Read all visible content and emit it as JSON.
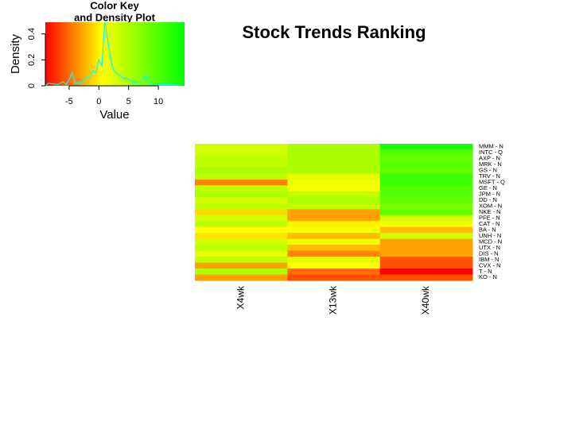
{
  "chart_data": [
    {
      "type": "heatmap",
      "title": "Stock Trends Ranking",
      "columns": [
        "X4wk",
        "X13wk",
        "X40wk"
      ],
      "rows": [
        "MMM - N",
        "INTC - Q",
        "AXP - N",
        "MRK - N",
        "GS - N",
        "TRV - N",
        "MSFT - Q",
        "GE - N",
        "JPM - N",
        "DD - N",
        "XOM - N",
        "NKE - N",
        "PFE - N",
        "CAT - N",
        "BA - N",
        "UNH - N",
        "MCD - N",
        "UTX - N",
        "DIS - N",
        "IBM - N",
        "CVX - N",
        "T - N",
        "KO - N"
      ],
      "values": [
        [
          3,
          5,
          13
        ],
        [
          3,
          5,
          10
        ],
        [
          4,
          5,
          9
        ],
        [
          4,
          5,
          10
        ],
        [
          5,
          5,
          9
        ],
        [
          4,
          2,
          11
        ],
        [
          -4,
          1,
          11
        ],
        [
          4,
          1,
          10
        ],
        [
          5,
          4,
          10
        ],
        [
          3,
          5,
          9
        ],
        [
          4,
          4,
          8
        ],
        [
          -1,
          -3,
          9
        ],
        [
          3,
          -3,
          3
        ],
        [
          4,
          0,
          1
        ],
        [
          0.5,
          1,
          -2
        ],
        [
          -0.5,
          -2,
          3
        ],
        [
          3,
          1.5,
          -3
        ],
        [
          4,
          -2,
          -3
        ],
        [
          2,
          -4,
          -3
        ],
        [
          4,
          2,
          -6
        ],
        [
          -3,
          0.5,
          -6
        ],
        [
          5,
          -5,
          -9
        ],
        [
          -3,
          -6,
          -6
        ]
      ],
      "colorscale": [
        {
          "value": -9,
          "color": "#ff0000"
        },
        {
          "value": 0.5,
          "color": "#ffff00"
        },
        {
          "value": 14.4,
          "color": "#00ff00"
        }
      ]
    },
    {
      "type": "density",
      "title": [
        "Color Key",
        "and Density Plot"
      ],
      "xlabel": "Value",
      "ylabel": "Density",
      "xlim": [
        -9,
        14.4
      ],
      "ylim": [
        0,
        0.49
      ],
      "xticks": [
        -5,
        0,
        5,
        10
      ],
      "yticks": [
        0,
        0.2,
        0.4
      ],
      "color": "#00ffff",
      "x": [
        -9,
        -8.5,
        -7,
        -6,
        -5.5,
        -5,
        -4.5,
        -4,
        -3,
        -2,
        -1.5,
        -1,
        -0.5,
        0,
        0.5,
        1,
        1.5,
        2,
        2.5,
        3,
        4,
        5,
        6,
        7,
        8,
        8.5,
        10,
        12,
        14
      ],
      "y": [
        0,
        0.02,
        0.01,
        0.03,
        0.01,
        0.05,
        0.1,
        0.02,
        0.02,
        0.08,
        0.06,
        0.12,
        0.1,
        0.2,
        0.15,
        0.5,
        0.35,
        0.2,
        0.12,
        0.1,
        0.06,
        0.05,
        0.02,
        0.03,
        0.08,
        0.02,
        0.01,
        0.01,
        0
      ]
    }
  ]
}
